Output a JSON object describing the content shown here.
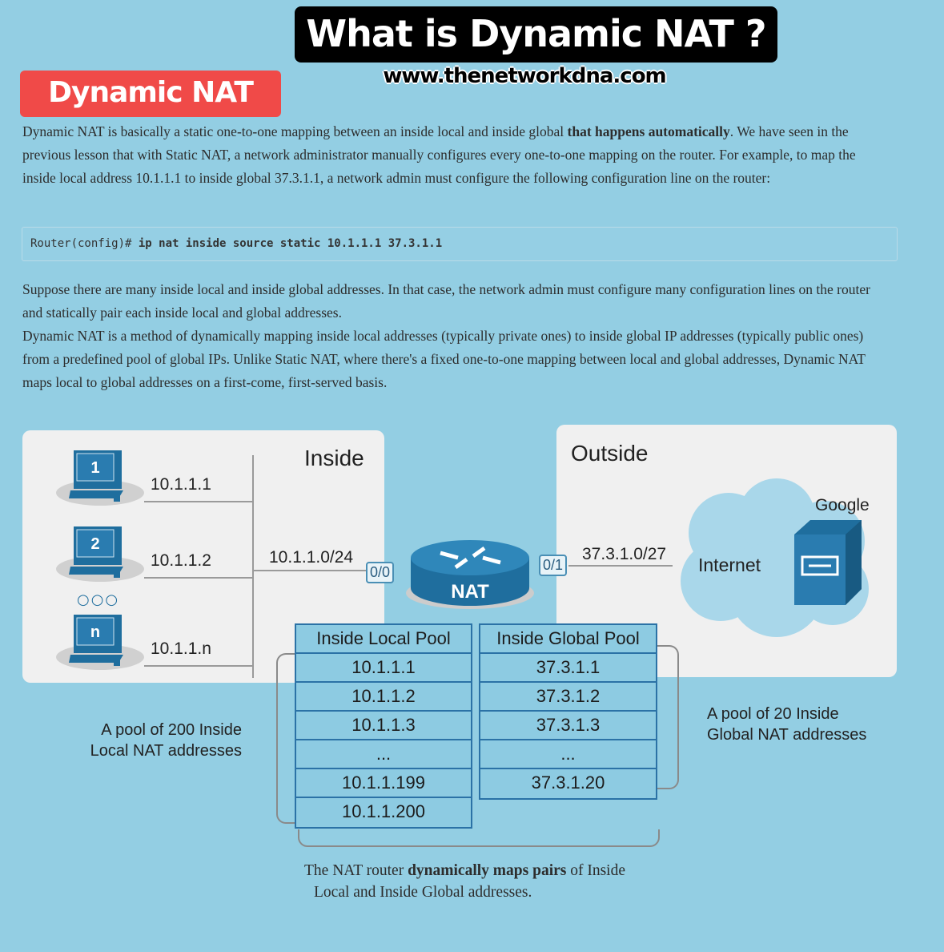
{
  "header": {
    "title": "What is Dynamic NAT ?",
    "website": "www.thenetworkdna.com",
    "badge": "Dynamic NAT"
  },
  "intro": {
    "p1_before": "Dynamic NAT is basically a static one-to-one mapping between an inside local and inside global ",
    "p1_bold": "that happens automatically",
    "p1_after": ". We have seen in the previous lesson that with Static NAT, a network administrator manually configures every one-to-one mapping on the router. For example, to map the inside local address 10.1.1.1 to inside global 37.3.1.1, a network admin must configure the following configuration line on the router:"
  },
  "code": {
    "prompt": "Router(config)# ",
    "command": "ip nat inside source static 10.1.1.1 37.3.1.1"
  },
  "body": {
    "p2": "Suppose there are many inside local and inside global addresses. In that case, the network admin must configure many configuration lines on the router and statically pair each inside local and global addresses.",
    "p3": "Dynamic NAT is a method of dynamically mapping inside local addresses (typically private ones) to inside global IP addresses (typically public ones) from a predefined pool of global IPs. Unlike Static NAT, where there's a fixed one-to-one mapping between local and global addresses, Dynamic NAT maps local to global addresses on a first-come, first-served basis."
  },
  "diagram": {
    "inside_label": "Inside",
    "outside_label": "Outside",
    "hosts": [
      {
        "num": "1",
        "ip": "10.1.1.1"
      },
      {
        "num": "2",
        "ip": "10.1.1.2"
      },
      {
        "num": "n",
        "ip": "10.1.1.n"
      }
    ],
    "inside_subnet": "10.1.1.0/24",
    "port_in": "0/0",
    "port_out": "0/1",
    "router_label": "NAT",
    "outside_subnet": "37.3.1.0/27",
    "internet_label": "Internet",
    "server_label": "Google",
    "local_pool": {
      "header": "Inside Local Pool",
      "rows": [
        "10.1.1.1",
        "10.1.1.2",
        "10.1.1.3",
        "...",
        "10.1.1.199",
        "10.1.1.200"
      ]
    },
    "global_pool": {
      "header": "Inside Global Pool",
      "rows": [
        "37.3.1.1",
        "37.3.1.2",
        "37.3.1.3",
        "...",
        "37.3.1.20"
      ]
    },
    "local_note": [
      "A pool of 200 Inside",
      "Local NAT addresses"
    ],
    "global_note": [
      "A pool of 20 Inside",
      "Global NAT addresses"
    ],
    "bottom_before": "The NAT router ",
    "bottom_bold": "dynamically maps pairs",
    "bottom_after": " of Inside",
    "bottom_line2": "Local and Inside Global addresses.",
    "colors": {
      "router": "#1f6e9e",
      "table_border": "#2b72a6",
      "table_fill": "#8dcbe2"
    }
  }
}
